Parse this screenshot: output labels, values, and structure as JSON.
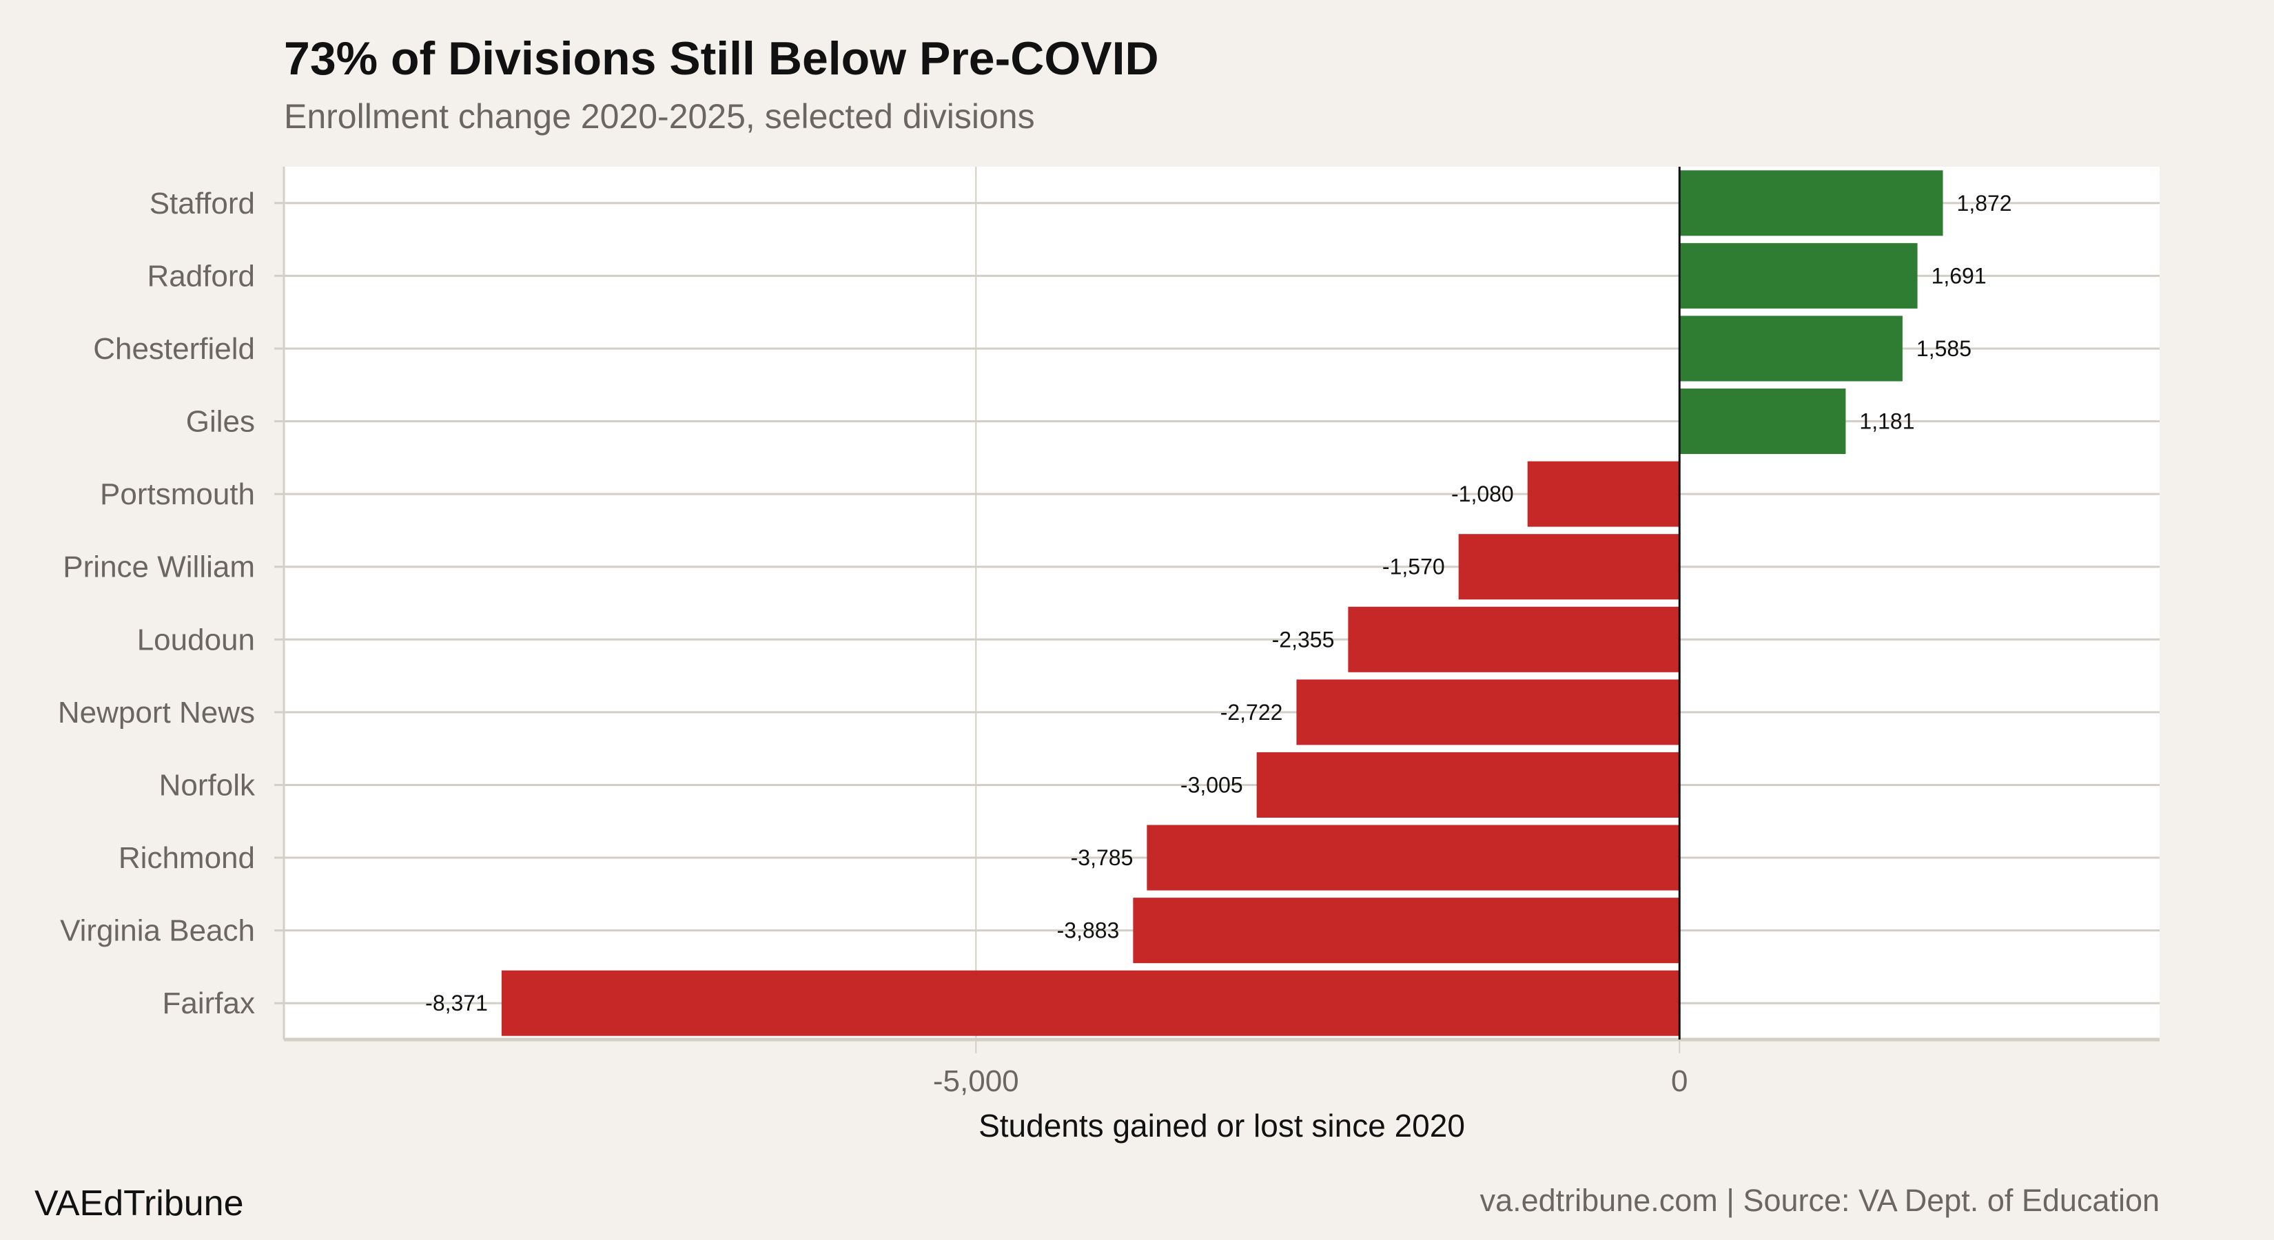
{
  "chart_data": {
    "type": "bar",
    "orientation": "horizontal",
    "title": "73% of Divisions Still Below Pre-COVID",
    "subtitle": "Enrollment change 2020-2025, selected divisions",
    "xlabel": "Students gained or lost since 2020",
    "ylabel": "",
    "categories": [
      "Stafford",
      "Radford",
      "Chesterfield",
      "Giles",
      "Portsmouth",
      "Prince William",
      "Loudoun",
      "Newport News",
      "Norfolk",
      "Richmond",
      "Virginia Beach",
      "Fairfax"
    ],
    "values": [
      1872,
      1691,
      1585,
      1181,
      -1080,
      -1570,
      -2355,
      -2722,
      -3005,
      -3785,
      -3883,
      -8371
    ],
    "data_labels": [
      "1,872",
      "1,691",
      "1,585",
      "1,181",
      "-1,080",
      "-1,570",
      "-2,355",
      "-2,722",
      "-3,005",
      "-3,785",
      "-3,883",
      "-8,371"
    ],
    "xlim": [
      -9918,
      3412
    ],
    "x_ticks": [
      -5000,
      0
    ],
    "x_tick_labels": [
      "-5,000",
      "0"
    ],
    "grid": true,
    "colors": {
      "positive": "#2E7D32",
      "negative": "#C62828",
      "background": "#F4F1EC",
      "panel": "#FFFFFF",
      "grid": "#D3CEC6"
    }
  },
  "footer": {
    "brand": "VAEdTribune",
    "source": "va.edtribune.com | Source: VA Dept. of Education"
  }
}
